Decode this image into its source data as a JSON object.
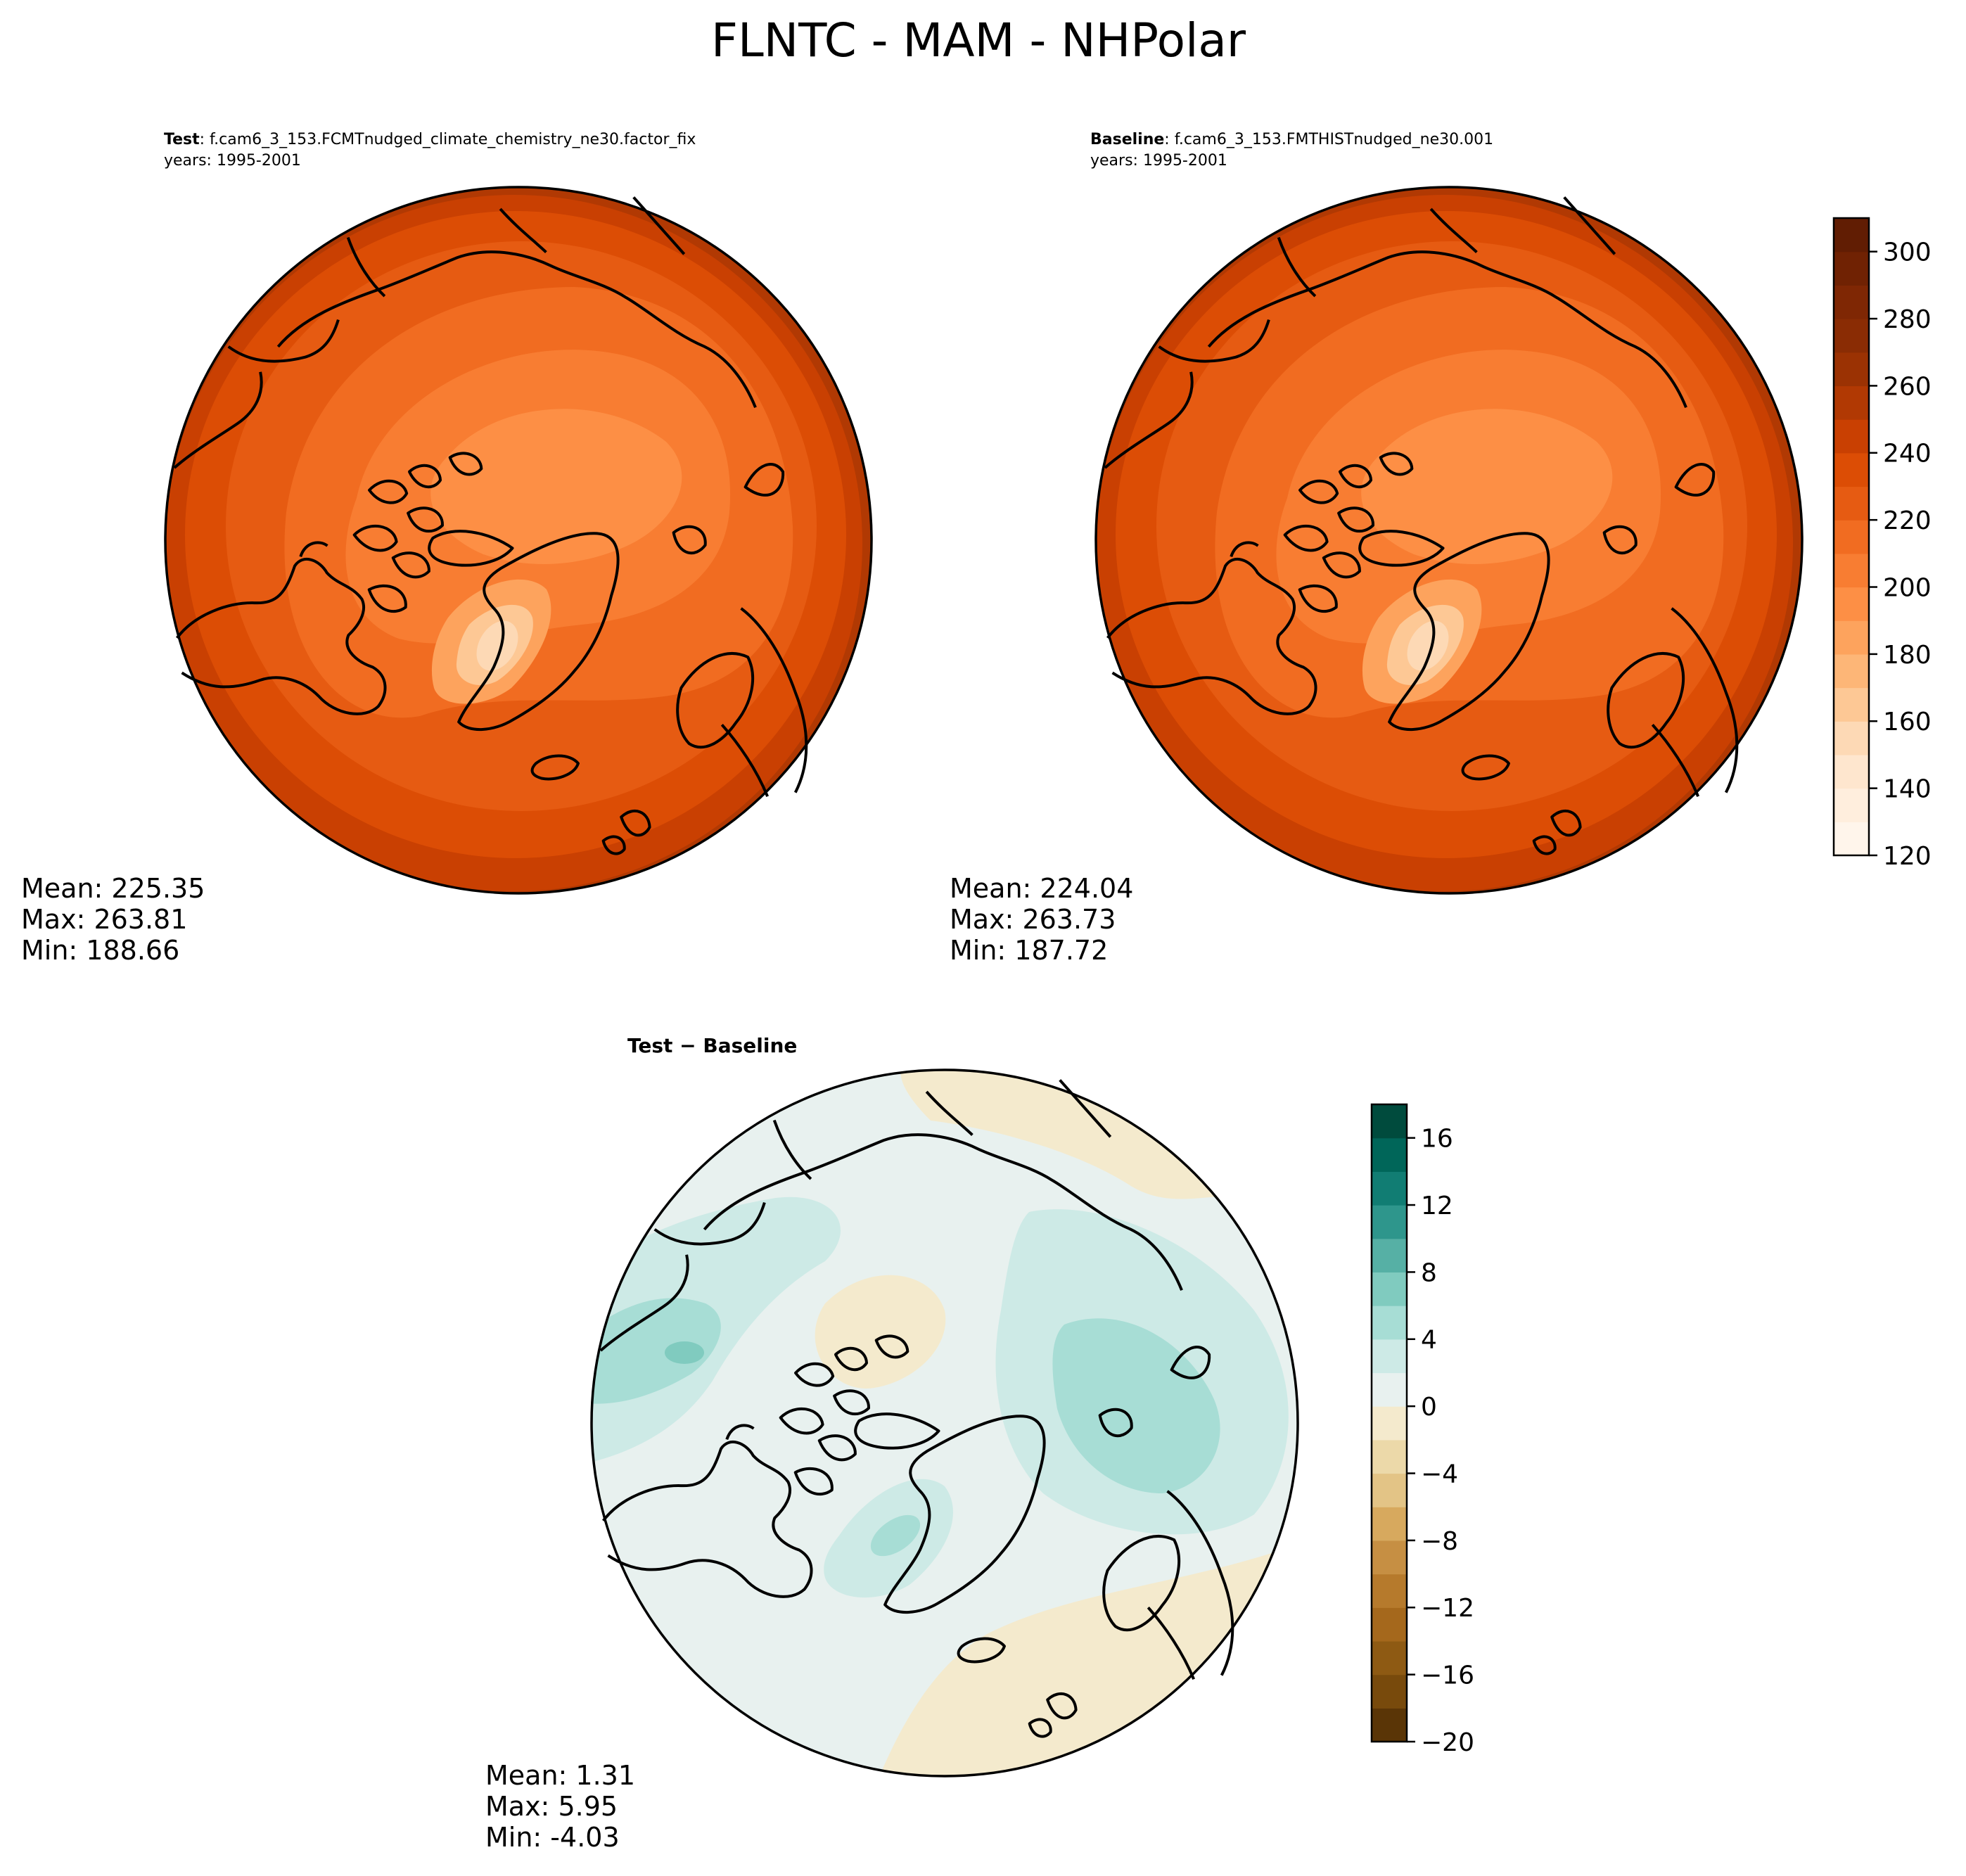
{
  "figure": {
    "title": "FLNTC - MAM - NHPolar"
  },
  "panels": {
    "test": {
      "label_bold": "Test",
      "label_rest": ": f.cam6_3_153.FCMTnudged_climate_chemistry_ne30.factor_fix",
      "years": "years: 1995-2001",
      "stats": {
        "mean": "Mean: 225.35",
        "max": "Max: 263.81",
        "min": "Min: 188.66"
      }
    },
    "baseline": {
      "label_bold": "Baseline",
      "label_rest": ": f.cam6_3_153.FMTHISTnudged_ne30.001",
      "years": "years: 1995-2001",
      "stats": {
        "mean": "Mean: 224.04",
        "max": "Max: 263.73",
        "min": "Min: 187.72"
      }
    },
    "diff": {
      "label": "Test − Baseline",
      "stats": {
        "mean": "Mean:  1.31",
        "max": "Max:  5.95",
        "min": "Min: -4.03"
      }
    }
  },
  "colorbars": {
    "main": {
      "ticks": [
        "120",
        "140",
        "160",
        "180",
        "200",
        "220",
        "240",
        "260",
        "280",
        "300"
      ],
      "range": [
        120,
        310
      ],
      "levels": 19,
      "colormap": "Oranges",
      "colors": [
        "#fff5eb",
        "#ffeedd",
        "#fee6ce",
        "#fdd9b5",
        "#fdc895",
        "#fdb677",
        "#fda35d",
        "#fd8f45",
        "#f87d32",
        "#f16c21",
        "#e65b12",
        "#dc4d05",
        "#c94002",
        "#b13903",
        "#9b3203",
        "#8a2c04",
        "#7f2704",
        "#702203",
        "#611d03"
      ]
    },
    "diff": {
      "ticks": [
        "−20",
        "−16",
        "−12",
        "−8",
        "−4",
        "0",
        "4",
        "8",
        "12",
        "16"
      ],
      "range": [
        -20,
        18
      ],
      "levels": 19,
      "colormap": "BrBG",
      "colors": [
        "#5a3506",
        "#784a0c",
        "#8e5a13",
        "#a5681c",
        "#b67a2c",
        "#c68f43",
        "#d7a95e",
        "#e3c486",
        "#ecd9a9",
        "#f4eacd",
        "#e8f1ef",
        "#cdeae6",
        "#a7ddd5",
        "#80cbbf",
        "#56b0a5",
        "#2e968c",
        "#117d73",
        "#006659",
        "#004b3d"
      ]
    }
  }
}
